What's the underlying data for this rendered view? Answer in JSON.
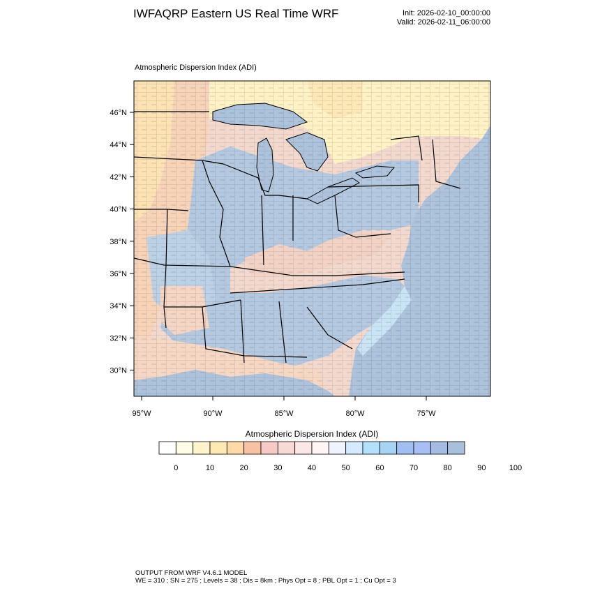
{
  "header": {
    "title": "IWFAQRP Eastern US Real Time WRF",
    "init": "Init: 2026-02-10_00:00:00",
    "valid": "Valid: 2026-02-11_06:00:00"
  },
  "map": {
    "subtitle": "Atmospheric Dispersion Index   (ADI)",
    "lat_labels": [
      "46°N",
      "44°N",
      "42°N",
      "40°N",
      "38°N",
      "36°N",
      "34°N",
      "32°N",
      "30°N"
    ],
    "lon_labels": [
      "95°W",
      "90°W",
      "85°W",
      "80°W",
      "75°W"
    ],
    "colors": {
      "land_high_adi": "#b3c9e1",
      "land_mid": "#f1ddd3",
      "land_low_adi": "#f9d4c0",
      "water": "#adc2db",
      "canada": "#fff3c6",
      "state_lines": "#000000"
    }
  },
  "legend": {
    "title": "Atmospheric Dispersion Index  (ADI)",
    "tick_labels": [
      "0",
      "10",
      "20",
      "30",
      "40",
      "50",
      "60",
      "70",
      "80",
      "90",
      "100"
    ],
    "colors": [
      "#ffffff",
      "#fffde6",
      "#fff4cc",
      "#ffe9b3",
      "#ffd9a6",
      "#f8c1a3",
      "#f5c9c4",
      "#f9d9d6",
      "#fbe8e6",
      "#fff5f5",
      "#eef3ff",
      "#d4ebff",
      "#b3e1fb",
      "#a8d4f4",
      "#a0bff0",
      "#a7bff5",
      "#a4bbe2",
      "#a9c0dc"
    ]
  },
  "footer": {
    "line1": "OUTPUT FROM WRF V4.6.1 MODEL",
    "line2": "WE = 310 ; SN = 275 ; Levels = 38 ; Dis = 8km ; Phys Opt = 8 ; PBL Opt = 1 ; Cu Opt = 3"
  }
}
